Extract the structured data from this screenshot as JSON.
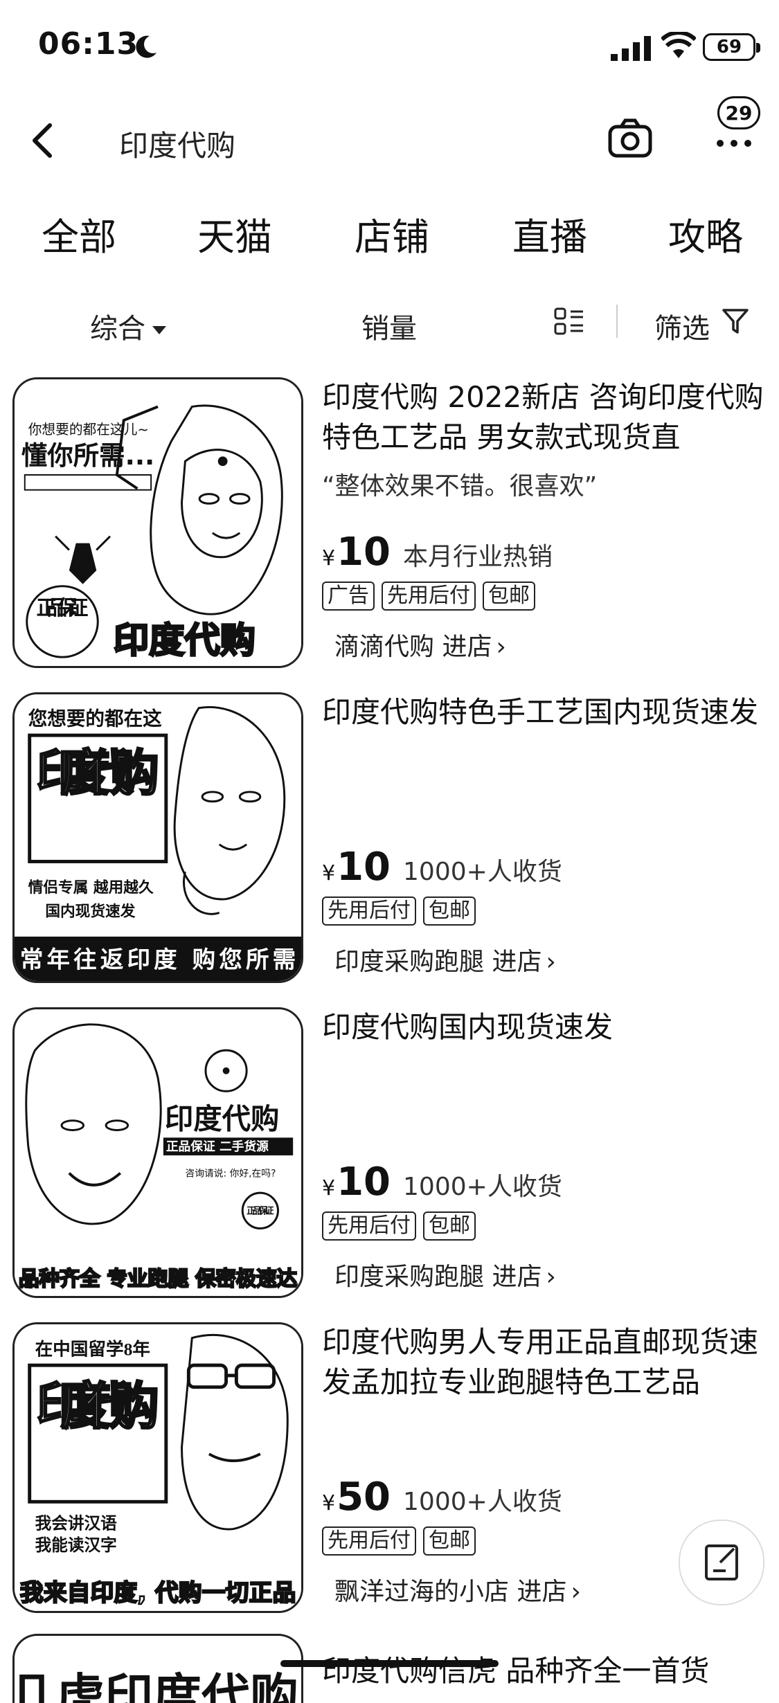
{
  "status": {
    "time": "06:13",
    "battery": "69"
  },
  "nav": {
    "title": "印度代购",
    "badge": "29"
  },
  "tabs": [
    "全部",
    "天猫",
    "店铺",
    "直播",
    "攻略"
  ],
  "sort": {
    "comprehensive": "综合",
    "sales": "销量",
    "filter": "筛选"
  },
  "products": [
    {
      "title": "印度代购 2022新店 咨询印度代购 特色工艺品 男女款式现货直",
      "review": "“整体效果不错。很喜欢”",
      "currency": "¥",
      "price": "10",
      "sales": "本月行业热销",
      "tags": [
        "广告",
        "先用后付",
        "包邮"
      ],
      "store": "滴滴代购 进店",
      "thumb": {
        "top": "你想要的都在这儿~",
        "headline": "懂你所需...",
        "badge": "正品保证",
        "bottom": "印度代购"
      }
    },
    {
      "title": "印度代购特色手工艺国内现货速发",
      "review": "",
      "currency": "¥",
      "price": "10",
      "sales": "1000+人收货",
      "tags": [
        "先用后付",
        "包邮"
      ],
      "store": "印度采购跑腿 进店",
      "thumb": {
        "top": "您想要的都在这",
        "headline": "印度代购",
        "sub1": "情侣专属 越用越久",
        "sub2": "国内现货速发",
        "bottom": "常年往返印度 购您所需"
      }
    },
    {
      "title": "印度代购国内现货速发",
      "review": "",
      "currency": "¥",
      "price": "10",
      "sales": "1000+人收货",
      "tags": [
        "先用后付",
        "包邮"
      ],
      "store": "印度采购跑腿 进店",
      "thumb": {
        "headline": "印度代购",
        "sub1": "正品保证 二手货源",
        "sub2": "咨询请说: 你好,在吗?",
        "badge": "正品保证",
        "bottom": "品种齐全 专业跑腿 保密极速达"
      }
    },
    {
      "title": "印度代购男人专用正品直邮现货速发孟加拉专业跑腿特色工艺品",
      "review": "",
      "currency": "¥",
      "price": "50",
      "sales": "1000+人收货",
      "tags": [
        "先用后付",
        "包邮"
      ],
      "store": "飘洋过海的小店 进店",
      "thumb": {
        "top": "在中国留学8年",
        "headline": "印度代购",
        "sub1": "我会讲汉语",
        "sub2": "我能读汉字",
        "bottom": "我来自印度, 代购一切正品"
      }
    }
  ],
  "partial": {
    "title": "印度代购信虎 品种齐全一首货",
    "thumb_text": "卩虎印度代购"
  }
}
